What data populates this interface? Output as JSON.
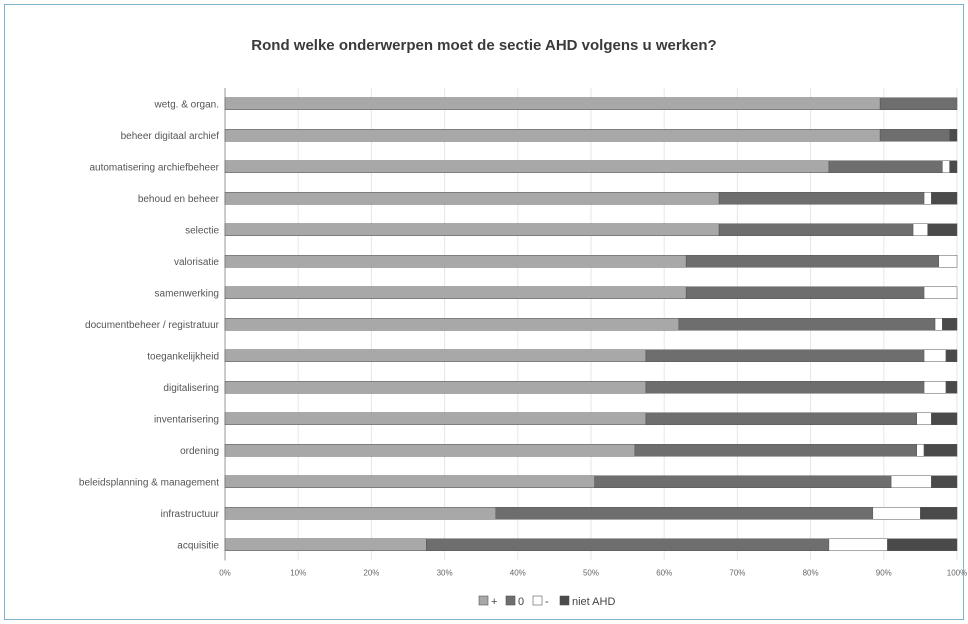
{
  "chart_data": {
    "type": "bar",
    "orientation": "horizontal",
    "stacked": "percent",
    "title": "Rond welke onderwerpen moet de sectie AHD volgens u werken?",
    "xlabel": "",
    "ylabel": "",
    "xlim": [
      0,
      100
    ],
    "x_ticks": [
      "0%",
      "10%",
      "20%",
      "30%",
      "40%",
      "50%",
      "60%",
      "70%",
      "80%",
      "90%",
      "100%"
    ],
    "grid": true,
    "legend_position": "bottom",
    "categories": [
      "wetg. & organ.",
      "beheer digitaal archief",
      "automatisering archiefbeheer",
      "behoud en beheer",
      "selectie",
      "valorisatie",
      "samenwerking",
      "documentbeheer / registratuur",
      "toegankelijkheid",
      "digitalisering",
      "inventarisering",
      "ordening",
      "beleidsplanning & management",
      "infrastructuur",
      "acquisitie"
    ],
    "series": [
      {
        "name": "+",
        "color": "#a8a8a8",
        "values": [
          89.5,
          89.5,
          82.5,
          67.5,
          67.5,
          63,
          63,
          62,
          57.5,
          57.5,
          57.5,
          56,
          50.5,
          37,
          27.5
        ]
      },
      {
        "name": "0",
        "color": "#6e6e6e",
        "values": [
          10.5,
          9.5,
          15.5,
          28,
          26.5,
          34.5,
          32.5,
          35,
          38,
          38,
          37,
          38.5,
          40.5,
          51.5,
          55
        ]
      },
      {
        "name": "-",
        "color": "#ffffff",
        "values": [
          0,
          0,
          1,
          1,
          2,
          2.5,
          4.5,
          1,
          3,
          3,
          2,
          1,
          5.5,
          6.5,
          8
        ]
      },
      {
        "name": "niet AHD",
        "color": "#4a4a4a",
        "values": [
          0,
          1,
          1,
          3.5,
          4,
          0,
          0,
          2,
          1.5,
          1.5,
          3.5,
          4.5,
          3.5,
          5,
          9.5
        ]
      }
    ]
  }
}
